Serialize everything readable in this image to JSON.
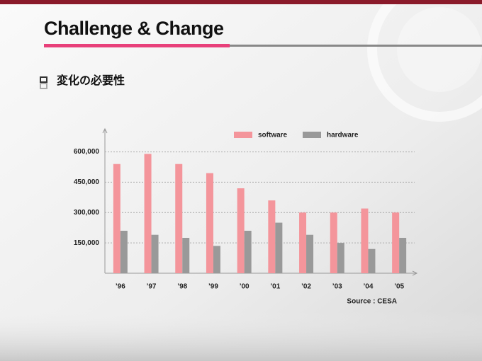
{
  "slide": {
    "title": "Challenge & Change",
    "heading": "変化の必要性"
  },
  "chart_data": {
    "type": "bar",
    "categories": [
      "’96",
      "’97",
      "’98",
      "’99",
      "’00",
      "’01",
      "’02",
      "’03",
      "’04",
      "’05"
    ],
    "series": [
      {
        "name": "software",
        "color": "#f4959b",
        "values": [
          540000,
          590000,
          540000,
          495000,
          420000,
          360000,
          300000,
          300000,
          320000,
          300000
        ]
      },
      {
        "name": "hardware",
        "color": "#999999",
        "values": [
          210000,
          190000,
          175000,
          135000,
          210000,
          250000,
          190000,
          150000,
          120000,
          175000
        ]
      }
    ],
    "ylim": [
      0,
      700000
    ],
    "yticks": [
      {
        "value": 150000,
        "label": "150,000"
      },
      {
        "value": 300000,
        "label": "300,000"
      },
      {
        "value": 450000,
        "label": "450,000"
      },
      {
        "value": 600000,
        "label": "600,000"
      }
    ],
    "grid": true,
    "source": "Source : CESA"
  }
}
